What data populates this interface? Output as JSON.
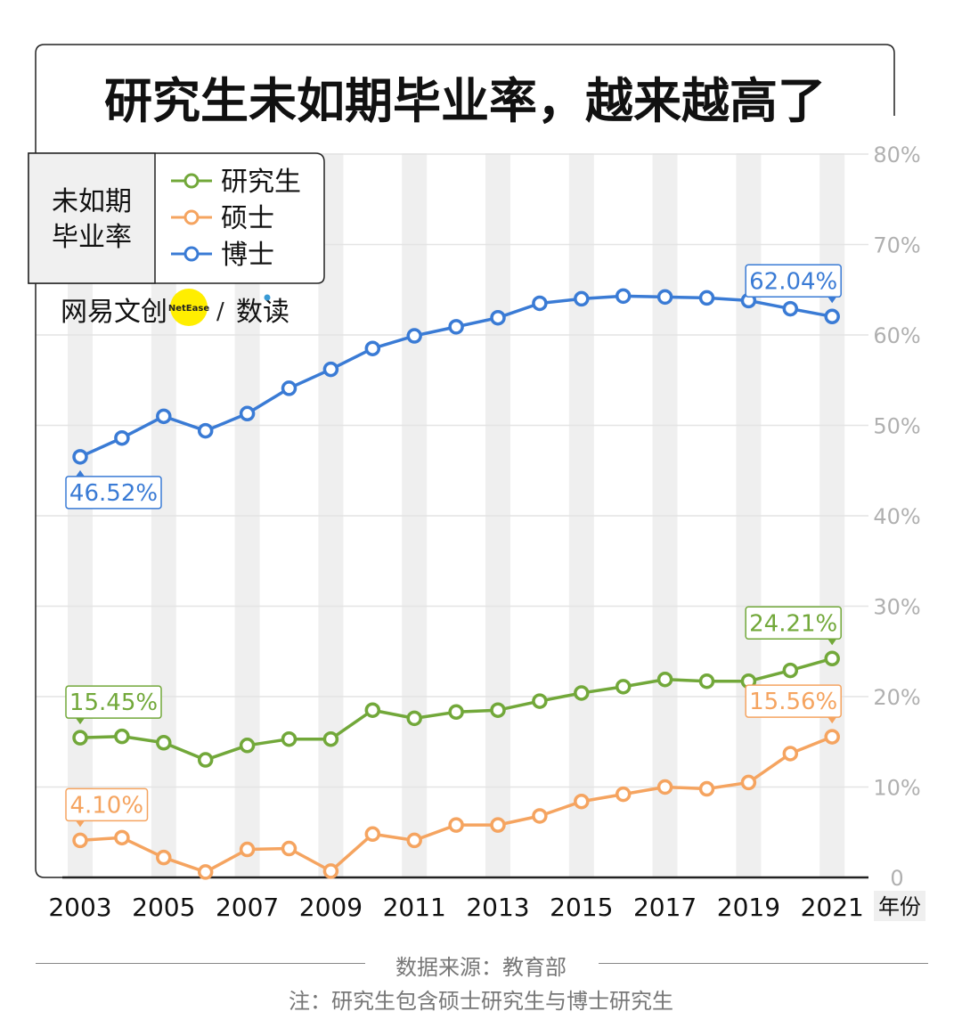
{
  "title": "研究生未如期毕业率，越来越高了",
  "brand": {
    "name": "网易文创",
    "badge": "NetEase",
    "section": "数读",
    "slash": "/"
  },
  "legend": {
    "label_line1": "未如期",
    "label_line2": "毕业率",
    "items": [
      {
        "name": "研究生",
        "color": "#72a83a"
      },
      {
        "name": "硕士",
        "color": "#f5a460"
      },
      {
        "name": "博士",
        "color": "#3a7bd5"
      }
    ]
  },
  "chart_data": {
    "type": "line",
    "title": "研究生未如期毕业率，越来越高了",
    "xlabel": "年份",
    "ylabel": "",
    "x": [
      2003,
      2004,
      2005,
      2006,
      2007,
      2008,
      2009,
      2010,
      2011,
      2012,
      2013,
      2014,
      2015,
      2016,
      2017,
      2018,
      2019,
      2020,
      2021
    ],
    "x_tick_labels": [
      "2003",
      "2005",
      "2007",
      "2009",
      "2011",
      "2013",
      "2015",
      "2017",
      "2019",
      "2021"
    ],
    "ylim": [
      0,
      80
    ],
    "y_ticks": [
      0,
      10,
      20,
      30,
      40,
      50,
      60,
      70,
      80
    ],
    "y_tick_labels": [
      "0",
      "10%",
      "20%",
      "30%",
      "40%",
      "50%",
      "60%",
      "70%",
      "80%"
    ],
    "grid": true,
    "series": [
      {
        "name": "博士",
        "color": "#3a7bd5",
        "values": [
          46.52,
          48.6,
          51.0,
          49.4,
          51.3,
          54.1,
          56.2,
          58.5,
          59.9,
          60.9,
          61.9,
          63.5,
          64.0,
          64.3,
          64.2,
          64.1,
          63.8,
          62.9,
          62.04
        ],
        "labels": {
          "first": "46.52%",
          "last": "62.04%"
        }
      },
      {
        "name": "研究生",
        "color": "#72a83a",
        "values": [
          15.45,
          15.6,
          14.9,
          13.0,
          14.6,
          15.3,
          15.3,
          18.5,
          17.6,
          18.3,
          18.5,
          19.5,
          20.4,
          21.1,
          21.9,
          21.7,
          21.7,
          22.9,
          24.21
        ],
        "labels": {
          "first": "15.45%",
          "last": "24.21%"
        }
      },
      {
        "name": "硕士",
        "color": "#f5a460",
        "values": [
          4.1,
          4.4,
          2.2,
          0.6,
          3.1,
          3.2,
          0.7,
          4.8,
          4.1,
          5.8,
          5.8,
          6.8,
          8.4,
          9.2,
          10.0,
          9.8,
          10.5,
          13.7,
          15.56
        ],
        "labels": {
          "first": "4.10%",
          "last": "15.56%"
        }
      }
    ]
  },
  "footer": {
    "source": "数据来源：教育部",
    "note": "注：研究生包含硕士研究生与博士研究生"
  }
}
